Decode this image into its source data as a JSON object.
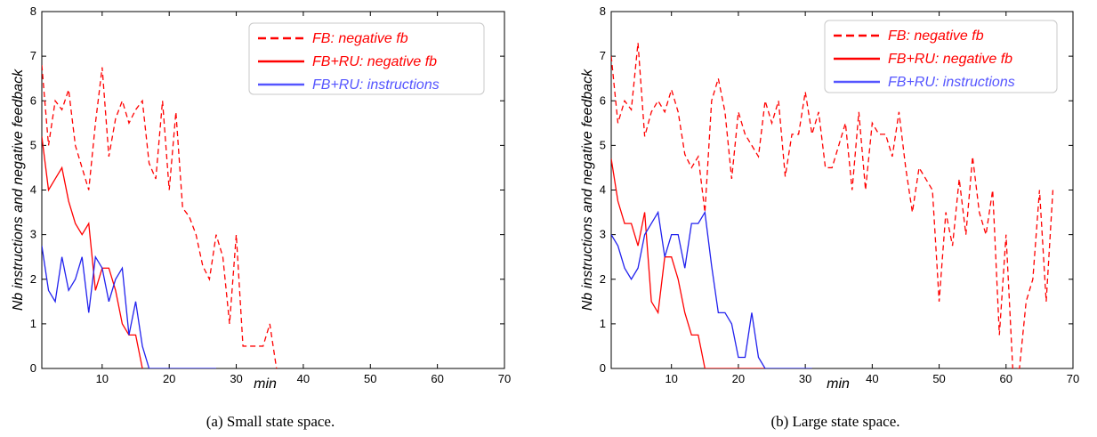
{
  "chart_data": [
    {
      "type": "line",
      "caption": "(a) Small state space.",
      "xlabel": "min",
      "ylabel": "Nb instructions and negative feedback",
      "xlim": [
        1,
        70
      ],
      "ylim": [
        0,
        8
      ],
      "xticks": [
        "10",
        "20",
        "30",
        "40",
        "50",
        "60",
        "70"
      ],
      "yticks": [
        "0",
        "1",
        "2",
        "3",
        "4",
        "5",
        "6",
        "7",
        "8"
      ],
      "legend_position": "top-right",
      "series": [
        {
          "name": "FB: negative fb",
          "color": "#ff0000",
          "style": "dashed",
          "x": [
            1,
            2,
            3,
            4,
            5,
            6,
            7,
            8,
            9,
            10,
            11,
            12,
            13,
            14,
            15,
            16,
            17,
            18,
            19,
            20,
            21,
            22,
            23,
            24,
            25,
            26,
            27,
            28,
            29,
            30,
            31,
            32,
            33,
            34,
            35,
            36
          ],
          "y": [
            6.8,
            5.0,
            6.0,
            5.8,
            6.25,
            5.0,
            4.5,
            4.0,
            5.5,
            6.75,
            4.75,
            5.6,
            6.0,
            5.5,
            5.8,
            6.0,
            4.6,
            4.25,
            6.0,
            4.0,
            5.75,
            3.6,
            3.4,
            3.0,
            2.3,
            2.0,
            3.0,
            2.5,
            1.0,
            3.0,
            0.5,
            0.5,
            0.5,
            0.5,
            1.0,
            0.0
          ]
        },
        {
          "name": "FB+RU: negative fb",
          "color": "#ff0000",
          "style": "solid",
          "x": [
            1,
            2,
            3,
            4,
            5,
            6,
            7,
            8,
            9,
            10,
            11,
            12,
            13,
            14,
            15,
            16
          ],
          "y": [
            5.2,
            4.0,
            4.25,
            4.5,
            3.75,
            3.25,
            3.0,
            3.25,
            1.75,
            2.25,
            2.25,
            1.75,
            1.0,
            0.75,
            0.75,
            0.0
          ]
        },
        {
          "name": "FB+RU: instructions",
          "color": "#0000ff",
          "style": "solid",
          "x": [
            1,
            2,
            3,
            4,
            5,
            6,
            7,
            8,
            9,
            10,
            11,
            12,
            13,
            14,
            15,
            16,
            17,
            18,
            19,
            20,
            21,
            22,
            23,
            24,
            25,
            26,
            27
          ],
          "y": [
            2.75,
            1.75,
            1.5,
            2.5,
            1.75,
            2.0,
            2.5,
            1.25,
            2.5,
            2.25,
            1.5,
            2.0,
            2.25,
            0.75,
            1.5,
            0.5,
            0.0,
            0.0,
            0.0,
            0.0,
            0.0,
            0.0,
            0.0,
            0.0,
            0.0,
            0.0,
            0.0
          ]
        }
      ]
    },
    {
      "type": "line",
      "caption": "(b) Large state space.",
      "xlabel": "min",
      "ylabel": "Nb instructions and negative feedback",
      "xlim": [
        1,
        70
      ],
      "ylim": [
        0,
        8
      ],
      "xticks": [
        "10",
        "20",
        "30",
        "40",
        "50",
        "60",
        "70"
      ],
      "yticks": [
        "0",
        "1",
        "2",
        "3",
        "4",
        "5",
        "6",
        "7",
        "8"
      ],
      "legend_position": "top-right",
      "series": [
        {
          "name": "FB: negative fb",
          "color": "#ff0000",
          "style": "dashed",
          "x": [
            1,
            2,
            3,
            4,
            5,
            6,
            7,
            8,
            9,
            10,
            11,
            12,
            13,
            14,
            15,
            16,
            17,
            18,
            19,
            20,
            21,
            22,
            23,
            24,
            25,
            26,
            27,
            28,
            29,
            30,
            31,
            32,
            33,
            34,
            35,
            36,
            37,
            38,
            39,
            40,
            41,
            42,
            43,
            44,
            45,
            46,
            47,
            48,
            49,
            50,
            51,
            52,
            53,
            54,
            55,
            56,
            57,
            58,
            59,
            60,
            61,
            62,
            63,
            64,
            65,
            66,
            67
          ],
          "y": [
            7.0,
            5.5,
            6.0,
            5.8,
            7.3,
            5.2,
            5.75,
            6.0,
            5.75,
            6.25,
            5.75,
            4.8,
            4.5,
            4.75,
            3.5,
            6.0,
            6.5,
            5.75,
            4.25,
            5.75,
            5.25,
            5.0,
            4.75,
            6.0,
            5.5,
            6.0,
            4.3,
            5.25,
            5.25,
            6.2,
            5.25,
            5.75,
            4.5,
            4.5,
            5.0,
            5.5,
            4.0,
            5.75,
            4.0,
            5.5,
            5.25,
            5.25,
            4.75,
            5.75,
            4.5,
            3.5,
            4.5,
            4.25,
            4.0,
            1.5,
            3.5,
            2.75,
            4.25,
            3.0,
            4.75,
            3.5,
            3.0,
            4.0,
            0.75,
            3.0,
            0.0,
            0.0,
            1.5,
            2.0,
            4.0,
            1.5,
            4.0
          ]
        },
        {
          "name": "FB+RU: negative fb",
          "color": "#ff0000",
          "style": "solid",
          "x": [
            1,
            2,
            3,
            4,
            5,
            6,
            7,
            8,
            9,
            10,
            11,
            12,
            13,
            14,
            15,
            16,
            17,
            18,
            19,
            20,
            21,
            22,
            23,
            24
          ],
          "y": [
            4.7,
            3.75,
            3.25,
            3.25,
            2.75,
            3.5,
            1.5,
            1.25,
            2.5,
            2.5,
            2.0,
            1.25,
            0.75,
            0.75,
            0.0,
            0.0,
            0.0,
            0.0,
            0.0,
            0.0,
            0.0,
            0.0,
            0.0,
            0.0
          ]
        },
        {
          "name": "FB+RU: instructions",
          "color": "#0000ff",
          "style": "solid",
          "x": [
            1,
            2,
            3,
            4,
            5,
            6,
            7,
            8,
            9,
            10,
            11,
            12,
            13,
            14,
            15,
            16,
            17,
            18,
            19,
            20,
            21,
            22,
            23,
            24,
            25,
            26,
            27,
            28,
            29,
            30,
            31
          ],
          "y": [
            3.0,
            2.75,
            2.25,
            2.0,
            2.25,
            3.0,
            3.25,
            3.5,
            2.5,
            3.0,
            3.0,
            2.25,
            3.25,
            3.25,
            3.5,
            2.3,
            1.25,
            1.25,
            1.0,
            0.25,
            0.25,
            1.25,
            0.25,
            0.0,
            0.0,
            0.0,
            0.0,
            0.0,
            0.0,
            0.0,
            0.0
          ]
        }
      ]
    }
  ]
}
